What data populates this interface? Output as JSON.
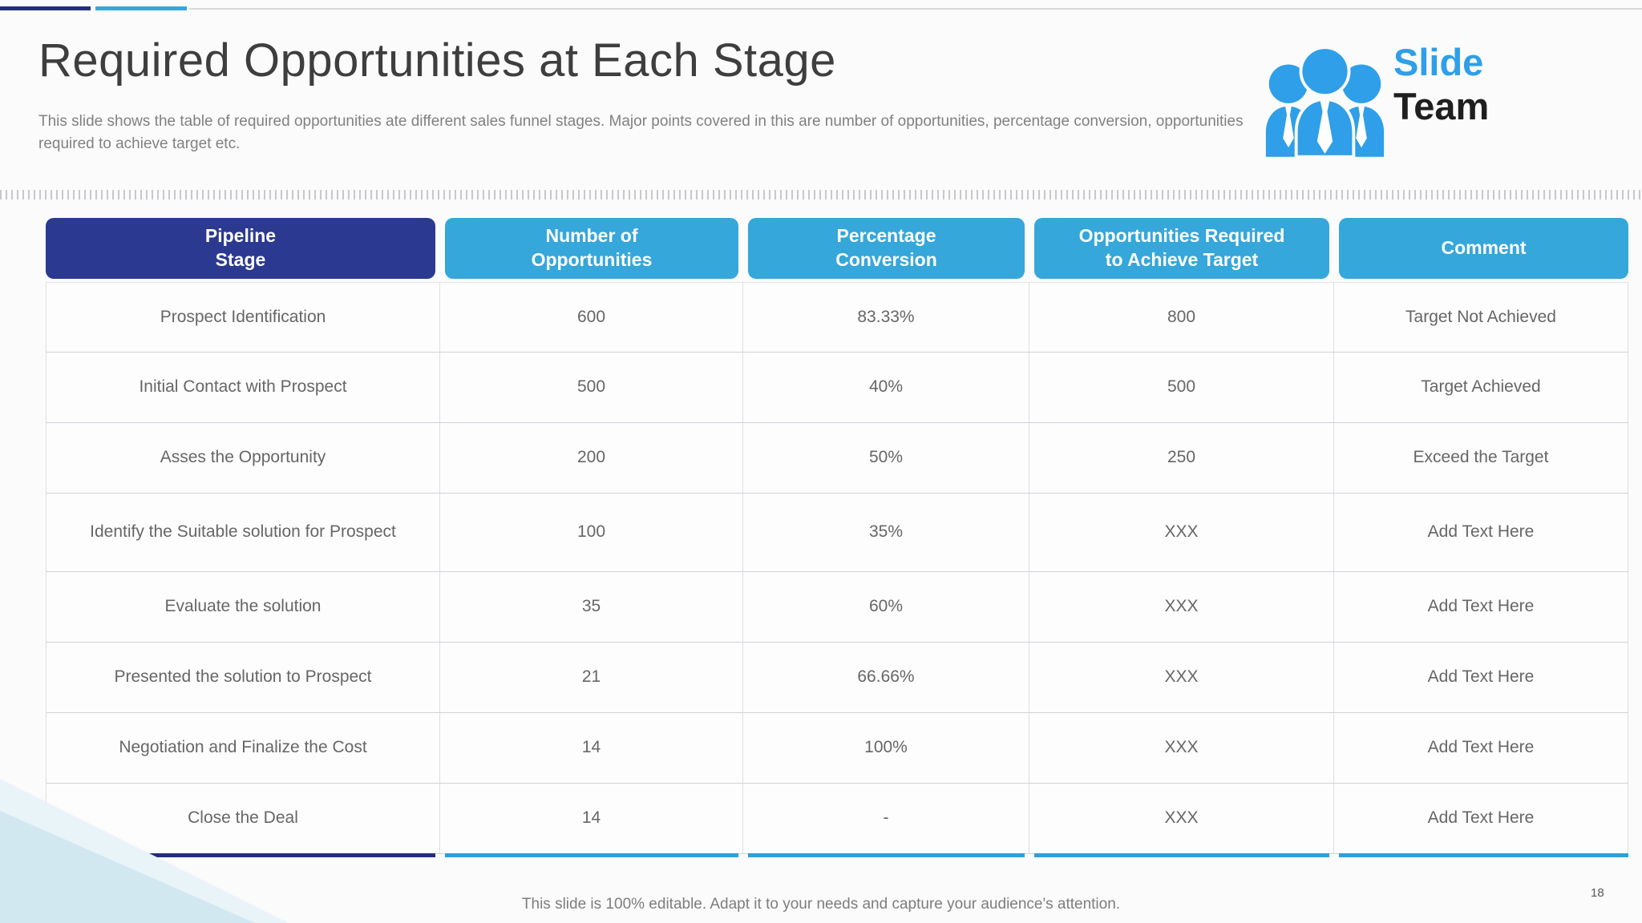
{
  "slide": {
    "title": "Required Opportunities at Each Stage",
    "description": "This slide shows the table of required opportunities ate different sales funnel stages. Major points covered in this are number of opportunities, percentage conversion, opportunities required to achieve target etc.",
    "footer": "This slide is 100% editable. Adapt it to your needs and capture your audience's attention.",
    "page_number": "18"
  },
  "logo": {
    "word1": "Slide",
    "word2": "Team",
    "icon": "team-people-icon"
  },
  "colors": {
    "navy": "#2B3990",
    "blue": "#35A7DA",
    "logo_blue": "#2E9FE8",
    "underline_navy": "#232E7D",
    "underline_blue": "#2F9FD6"
  },
  "table": {
    "headers": [
      {
        "key": "stage",
        "label": "Pipeline\nStage"
      },
      {
        "key": "opportunities",
        "label": "Number of\nOpportunities"
      },
      {
        "key": "conversion",
        "label": "Percentage\nConversion"
      },
      {
        "key": "required",
        "label": "Opportunities Required\nto Achieve Target"
      },
      {
        "key": "comment",
        "label": "Comment"
      }
    ],
    "rows": [
      {
        "stage": "Prospect Identification",
        "opportunities": "600",
        "conversion": "83.33%",
        "required": "800",
        "comment": "Target Not Achieved"
      },
      {
        "stage": "Initial Contact with Prospect",
        "opportunities": "500",
        "conversion": "40%",
        "required": "500",
        "comment": "Target Achieved"
      },
      {
        "stage": "Asses the Opportunity",
        "opportunities": "200",
        "conversion": "50%",
        "required": "250",
        "comment": "Exceed the Target"
      },
      {
        "stage": "Identify the Suitable solution for Prospect",
        "opportunities": "100",
        "conversion": "35%",
        "required": "XXX",
        "comment": "Add Text Here"
      },
      {
        "stage": "Evaluate the solution",
        "opportunities": "35",
        "conversion": "60%",
        "required": "XXX",
        "comment": "Add Text Here"
      },
      {
        "stage": "Presented the solution to Prospect",
        "opportunities": "21",
        "conversion": "66.66%",
        "required": "XXX",
        "comment": "Add Text Here"
      },
      {
        "stage": "Negotiation and Finalize the Cost",
        "opportunities": "14",
        "conversion": "100%",
        "required": "XXX",
        "comment": "Add Text Here"
      },
      {
        "stage": "Close the Deal",
        "opportunities": "14",
        "conversion": "-",
        "required": "XXX",
        "comment": "Add Text Here"
      }
    ]
  }
}
